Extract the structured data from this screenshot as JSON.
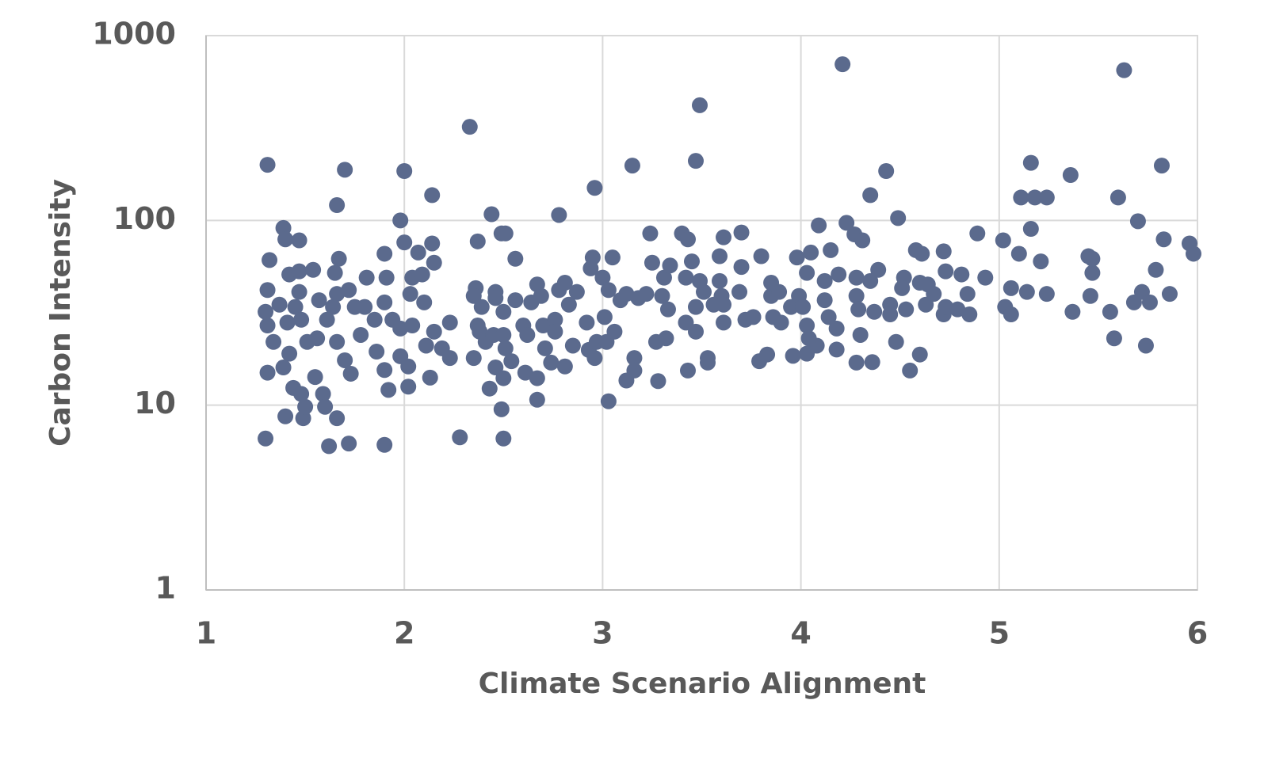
{
  "chart_data": {
    "type": "scatter",
    "x_label": "Climate Scenario Alignment",
    "y_label": "Carbon Intensity",
    "color": "#5b6a8d",
    "log_y": true,
    "grid": true,
    "xlim": [
      1,
      6
    ],
    "xticks": [
      1,
      2,
      3,
      4,
      5,
      6
    ],
    "ylim": [
      1,
      1000
    ],
    "yticks": [
      1,
      10,
      100,
      1000
    ],
    "x": [
      1.31,
      1.3,
      1.32,
      1.31,
      1.3,
      1.31,
      1.34,
      1.31,
      1.39,
      1.4,
      1.47,
      1.4,
      1.49,
      1.42,
      1.47,
      1.54,
      1.47,
      1.45,
      1.48,
      1.41,
      1.37,
      1.42,
      1.39,
      1.44,
      1.48,
      1.5,
      1.57,
      1.61,
      1.56,
      1.51,
      1.55,
      1.59,
      1.6,
      1.62,
      1.72,
      1.66,
      1.66,
      1.7,
      1.67,
      1.65,
      1.66,
      1.72,
      1.64,
      1.66,
      1.7,
      1.73,
      1.75,
      1.81,
      1.8,
      1.78,
      1.85,
      1.86,
      1.9,
      1.92,
      1.9,
      1.91,
      1.9,
      1.9,
      2.0,
      1.98,
      2.0,
      2.03,
      2.04,
      2.07,
      1.94,
      1.98,
      2.04,
      1.98,
      2.02,
      2.02,
      2.1,
      2.09,
      2.14,
      2.14,
      2.15,
      2.15,
      2.11,
      2.19,
      2.13,
      2.23,
      2.23,
      2.28,
      2.33,
      2.37,
      2.36,
      2.35,
      2.39,
      2.37,
      2.38,
      2.35,
      2.41,
      2.44,
      2.49,
      2.51,
      2.46,
      2.46,
      2.5,
      2.45,
      2.5,
      2.51,
      2.54,
      2.46,
      2.5,
      2.43,
      2.49,
      2.5,
      2.56,
      2.56,
      2.6,
      2.62,
      2.61,
      2.67,
      2.67,
      2.64,
      2.69,
      2.7,
      2.71,
      2.67,
      2.74,
      2.78,
      2.76,
      2.76,
      2.78,
      2.81,
      2.83,
      2.87,
      2.81,
      2.85,
      2.92,
      2.93,
      2.96,
      2.95,
      2.94,
      3.0,
      2.96,
      2.97,
      3.03,
      3.01,
      3.02,
      3.06,
      3.05,
      3.03,
      3.09,
      3.12,
      3.12,
      3.15,
      3.16,
      3.16,
      3.18,
      3.22,
      3.24,
      3.25,
      3.27,
      3.28,
      3.31,
      3.34,
      3.3,
      3.32,
      3.33,
      3.4,
      3.43,
      3.45,
      3.42,
      3.42,
      3.47,
      3.43,
      3.47,
      3.49,
      3.49,
      3.51,
      3.47,
      3.53,
      3.53,
      3.59,
      3.6,
      3.61,
      3.59,
      3.56,
      3.61,
      3.61,
      3.7,
      3.7,
      3.69,
      3.72,
      3.76,
      3.8,
      3.79,
      3.83,
      3.85,
      3.85,
      3.86,
      3.89,
      3.9,
      3.95,
      3.96,
      3.98,
      3.99,
      4.01,
      4.03,
      4.03,
      4.03,
      4.05,
      4.09,
      4.08,
      4.04,
      4.12,
      4.12,
      4.14,
      4.15,
      4.18,
      4.18,
      4.19,
      4.21,
      4.23,
      4.27,
      4.31,
      4.28,
      4.28,
      4.29,
      4.3,
      4.28,
      4.35,
      4.35,
      4.37,
      4.36,
      4.39,
      4.43,
      4.45,
      4.45,
      4.49,
      4.48,
      4.52,
      4.51,
      4.53,
      4.55,
      4.58,
      4.61,
      4.6,
      4.63,
      4.64,
      4.6,
      4.67,
      4.72,
      4.73,
      4.72,
      4.73,
      4.79,
      4.81,
      4.84,
      4.85,
      4.89,
      4.93,
      5.02,
      5.03,
      5.06,
      5.06,
      5.1,
      5.11,
      5.16,
      5.16,
      5.18,
      5.24,
      5.21,
      5.14,
      5.24,
      5.36,
      5.37,
      5.45,
      5.47,
      5.46,
      5.47,
      5.56,
      5.58,
      5.6,
      5.63,
      5.7,
      5.72,
      5.68,
      5.74,
      5.76,
      5.79,
      5.82,
      5.83,
      5.86,
      5.96,
      5.98
    ],
    "values": [
      200,
      6.6,
      61,
      42,
      32,
      27,
      22,
      15,
      91,
      79,
      78,
      8.7,
      8.5,
      51,
      53,
      54,
      41,
      34,
      29,
      28,
      35,
      19,
      16,
      12.4,
      11.5,
      9.8,
      37,
      29,
      23,
      22,
      14.2,
      11.5,
      9.8,
      6.0,
      6.2,
      8.5,
      121,
      188,
      62,
      52,
      40,
      42,
      34,
      22,
      17.5,
      14.8,
      34,
      49,
      34,
      24,
      29,
      19.5,
      15.5,
      12.1,
      66,
      49,
      36,
      6.1,
      185,
      100,
      76,
      40,
      49,
      67,
      29,
      26,
      27,
      18.4,
      16.2,
      12.6,
      36,
      51,
      137,
      75,
      59,
      25,
      21,
      20.3,
      14.1,
      28,
      18,
      6.7,
      321,
      77,
      43,
      39,
      34,
      27,
      25,
      18,
      22,
      108,
      85,
      85,
      41,
      38,
      32,
      24,
      24,
      20.3,
      17.3,
      16,
      14,
      12.3,
      9.5,
      6.6,
      62,
      37,
      27,
      24,
      15,
      10.7,
      45,
      36,
      39,
      27,
      20.3,
      14,
      17,
      107,
      29,
      25,
      42,
      46,
      35,
      41,
      16.2,
      21,
      28,
      19.9,
      150,
      63,
      55,
      49,
      18,
      22,
      42,
      30,
      22,
      25,
      63,
      10.5,
      37,
      40,
      13.6,
      198,
      18,
      15.4,
      38,
      40,
      85,
      59,
      22,
      13.5,
      49,
      57,
      39,
      23,
      33,
      85,
      79,
      60,
      49,
      28,
      25,
      15.4,
      210,
      420,
      47,
      41,
      34,
      18,
      17,
      47,
      39,
      81,
      64,
      35,
      28,
      35,
      86,
      56,
      41,
      29,
      30,
      64,
      17.3,
      18.8,
      39,
      46,
      30,
      41,
      28,
      34,
      18.5,
      63,
      39,
      34,
      27,
      19,
      52,
      67,
      94,
      21,
      23,
      47,
      37,
      30,
      69,
      26,
      20,
      51,
      700,
      97,
      84,
      78,
      49,
      39,
      33,
      24,
      17,
      137,
      47,
      32,
      17.1,
      54,
      185,
      35,
      31,
      103,
      22,
      49,
      43,
      33,
      15.4,
      69,
      66,
      46,
      35,
      45,
      18.8,
      40,
      68,
      53,
      31,
      34,
      33,
      51,
      40,
      31,
      85,
      49,
      78,
      34,
      43,
      31,
      66,
      133,
      205,
      90,
      133,
      133,
      60,
      41,
      40,
      176,
      32,
      64,
      52,
      39,
      62,
      32,
      23,
      133,
      650,
      99,
      41,
      36,
      21,
      36,
      54,
      198,
      79,
      40,
      75,
      66
    ]
  }
}
